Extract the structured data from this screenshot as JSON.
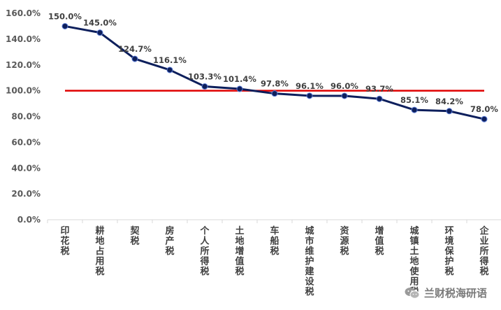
{
  "chart_data": {
    "type": "line",
    "categories": [
      "印花税",
      "耕地占用税",
      "契税",
      "房产税",
      "个人所得税",
      "土地增值税",
      "车船税",
      "城市维护建设税",
      "资源税",
      "增值税",
      "城镇土地使用税",
      "环境保护税",
      "企业所得税"
    ],
    "series": [
      {
        "values": [
          150.0,
          145.0,
          124.7,
          116.1,
          103.3,
          101.4,
          97.8,
          96.1,
          96.0,
          93.7,
          85.1,
          84.2,
          78.0
        ],
        "color": "#0d1f5c"
      }
    ],
    "data_labels": [
      "150.0%",
      "145.0%",
      "124.7%",
      "116.1%",
      "103.3%",
      "101.4%",
      "97.8%",
      "96.1%",
      "96.0%",
      "93.7%",
      "85.1%",
      "84.2%",
      "78.0%"
    ],
    "reference_line": {
      "value": 100,
      "color": "#e00000"
    },
    "yticks": [
      "0.0%",
      "20.0%",
      "40.0%",
      "60.0%",
      "80.0%",
      "100.0%",
      "120.0%",
      "140.0%",
      "160.0%"
    ],
    "ylim": [
      0,
      160
    ],
    "grid": false
  },
  "watermark": {
    "text": "兰财税海研语",
    "icon": "wechat-icon"
  }
}
